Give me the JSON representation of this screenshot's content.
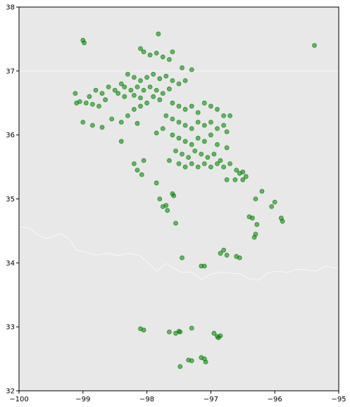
{
  "chart_data": {
    "type": "scatter",
    "title": "",
    "xlabel": "",
    "ylabel": "",
    "xlim": [
      -100,
      -95
    ],
    "ylim": [
      32,
      38
    ],
    "grid": false,
    "legend": "none",
    "x_ticks": [
      -100,
      -99,
      -98,
      -97,
      -96,
      -95
    ],
    "y_ticks": [
      32,
      33,
      34,
      35,
      36,
      37,
      38
    ],
    "x_tick_labels": [
      "−100",
      "−99",
      "−98",
      "−97",
      "−96",
      "−95"
    ],
    "y_tick_labels": [
      "32",
      "33",
      "34",
      "35",
      "36",
      "37",
      "38"
    ],
    "colors": {
      "points": "#008000",
      "plot_background": "#e8e8e8",
      "boundary_lines": "#ffffff",
      "axes": "#000000"
    },
    "background_lines": [
      {
        "label": "",
        "points": [
          [
            -100,
            36.998
          ],
          [
            -94.62,
            36.998
          ]
        ]
      },
      {
        "label": "",
        "points": [
          [
            -100,
            34.56
          ],
          [
            -99.85,
            34.55
          ],
          [
            -99.72,
            34.45
          ],
          [
            -99.58,
            34.38
          ],
          [
            -99.45,
            34.42
          ],
          [
            -99.35,
            34.46
          ],
          [
            -99.22,
            34.38
          ],
          [
            -99.1,
            34.2
          ],
          [
            -98.95,
            34.17
          ],
          [
            -98.8,
            34.12
          ],
          [
            -98.6,
            34.15
          ],
          [
            -98.45,
            34.11
          ],
          [
            -98.3,
            34.15
          ],
          [
            -98.12,
            34.12
          ],
          [
            -97.98,
            34.0
          ],
          [
            -97.85,
            33.87
          ],
          [
            -97.7,
            33.99
          ],
          [
            -97.55,
            33.9
          ],
          [
            -97.45,
            33.85
          ],
          [
            -97.3,
            33.86
          ],
          [
            -97.15,
            33.74
          ],
          [
            -97.0,
            33.82
          ],
          [
            -96.85,
            33.86
          ],
          [
            -96.7,
            33.84
          ],
          [
            -96.55,
            33.83
          ],
          [
            -96.4,
            33.75
          ],
          [
            -96.25,
            33.73
          ],
          [
            -96.1,
            33.85
          ],
          [
            -95.95,
            33.87
          ],
          [
            -95.8,
            33.85
          ],
          [
            -95.65,
            33.9
          ],
          [
            -95.5,
            33.89
          ],
          [
            -95.35,
            33.87
          ],
          [
            -95.2,
            33.95
          ],
          [
            -95.05,
            33.92
          ],
          [
            -95.0,
            33.9
          ]
        ]
      }
    ],
    "series": [
      {
        "color": "#008000",
        "points": [
          [
            -99.0,
            37.48
          ],
          [
            -98.98,
            37.44
          ],
          [
            -95.38,
            37.4
          ],
          [
            -97.82,
            37.58
          ],
          [
            -98.1,
            37.35
          ],
          [
            -98.05,
            37.3
          ],
          [
            -97.95,
            37.25
          ],
          [
            -97.85,
            37.28
          ],
          [
            -97.75,
            37.22
          ],
          [
            -97.65,
            37.18
          ],
          [
            -97.6,
            37.3
          ],
          [
            -97.45,
            37.05
          ],
          [
            -97.3,
            37.02
          ],
          [
            -98.3,
            36.95
          ],
          [
            -98.2,
            36.9
          ],
          [
            -98.1,
            36.85
          ],
          [
            -98.0,
            36.9
          ],
          [
            -97.9,
            36.95
          ],
          [
            -97.8,
            36.88
          ],
          [
            -97.7,
            36.92
          ],
          [
            -97.6,
            36.85
          ],
          [
            -97.5,
            36.8
          ],
          [
            -97.4,
            36.85
          ],
          [
            -98.4,
            36.8
          ],
          [
            -98.35,
            36.75
          ],
          [
            -98.25,
            36.7
          ],
          [
            -98.15,
            36.75
          ],
          [
            -98.05,
            36.7
          ],
          [
            -97.95,
            36.75
          ],
          [
            -97.85,
            36.7
          ],
          [
            -97.75,
            36.65
          ],
          [
            -97.65,
            36.72
          ],
          [
            -98.6,
            36.75
          ],
          [
            -98.5,
            36.7
          ],
          [
            -98.45,
            36.65
          ],
          [
            -98.35,
            36.6
          ],
          [
            -98.2,
            36.62
          ],
          [
            -98.1,
            36.58
          ],
          [
            -97.9,
            36.6
          ],
          [
            -97.8,
            36.55
          ],
          [
            -98.8,
            36.7
          ],
          [
            -98.7,
            36.65
          ],
          [
            -98.9,
            36.6
          ],
          [
            -98.65,
            36.55
          ],
          [
            -99.1,
            36.5
          ],
          [
            -99.05,
            36.52
          ],
          [
            -98.95,
            36.5
          ],
          [
            -98.85,
            36.48
          ],
          [
            -98.75,
            36.45
          ],
          [
            -99.12,
            36.65
          ],
          [
            -99.0,
            36.2
          ],
          [
            -98.85,
            36.15
          ],
          [
            -98.7,
            36.12
          ],
          [
            -98.55,
            36.25
          ],
          [
            -98.4,
            36.2
          ],
          [
            -98.3,
            36.3
          ],
          [
            -98.2,
            36.4
          ],
          [
            -98.1,
            36.45
          ],
          [
            -98.0,
            36.5
          ],
          [
            -98.15,
            36.18
          ],
          [
            -97.6,
            36.5
          ],
          [
            -97.5,
            36.45
          ],
          [
            -97.4,
            36.4
          ],
          [
            -97.3,
            36.45
          ],
          [
            -97.2,
            36.35
          ],
          [
            -97.1,
            36.5
          ],
          [
            -97.0,
            36.45
          ],
          [
            -96.9,
            36.4
          ],
          [
            -96.8,
            36.3
          ],
          [
            -97.7,
            36.3
          ],
          [
            -97.6,
            36.25
          ],
          [
            -97.5,
            36.2
          ],
          [
            -97.4,
            36.15
          ],
          [
            -97.3,
            36.1
          ],
          [
            -97.2,
            36.2
          ],
          [
            -97.1,
            36.15
          ],
          [
            -97.0,
            36.2
          ],
          [
            -96.9,
            36.1
          ],
          [
            -96.8,
            36.15
          ],
          [
            -96.7,
            36.3
          ],
          [
            -96.75,
            36.05
          ],
          [
            -97.75,
            36.1
          ],
          [
            -97.6,
            36.0
          ],
          [
            -97.5,
            35.95
          ],
          [
            -97.4,
            35.9
          ],
          [
            -97.3,
            35.85
          ],
          [
            -97.2,
            35.95
          ],
          [
            -97.1,
            35.9
          ],
          [
            -97.0,
            36.0
          ],
          [
            -96.9,
            35.85
          ],
          [
            -96.75,
            35.8
          ],
          [
            -97.85,
            36.03
          ],
          [
            -97.55,
            35.75
          ],
          [
            -97.45,
            35.7
          ],
          [
            -97.35,
            35.65
          ],
          [
            -97.25,
            35.75
          ],
          [
            -97.15,
            35.7
          ],
          [
            -97.05,
            35.65
          ],
          [
            -96.95,
            35.7
          ],
          [
            -96.85,
            35.6
          ],
          [
            -97.65,
            35.6
          ],
          [
            -97.5,
            35.55
          ],
          [
            -97.4,
            35.5
          ],
          [
            -97.3,
            35.55
          ],
          [
            -97.2,
            35.5
          ],
          [
            -97.1,
            35.55
          ],
          [
            -97.0,
            35.5
          ],
          [
            -96.9,
            35.55
          ],
          [
            -96.8,
            35.5
          ],
          [
            -96.7,
            35.55
          ],
          [
            -96.6,
            35.45
          ],
          [
            -96.55,
            35.4
          ],
          [
            -96.5,
            35.42
          ],
          [
            -96.45,
            35.35
          ],
          [
            -96.62,
            35.3
          ],
          [
            -96.75,
            35.3
          ],
          [
            -98.4,
            35.9
          ],
          [
            -98.2,
            35.55
          ],
          [
            -98.15,
            35.45
          ],
          [
            -98.08,
            35.38
          ],
          [
            -98.05,
            35.6
          ],
          [
            -97.85,
            35.25
          ],
          [
            -97.6,
            35.08
          ],
          [
            -97.58,
            35.05
          ],
          [
            -97.8,
            35.0
          ],
          [
            -97.75,
            34.88
          ],
          [
            -97.7,
            34.9
          ],
          [
            -97.68,
            34.82
          ],
          [
            -97.55,
            34.62
          ],
          [
            -96.5,
            35.3
          ],
          [
            -96.2,
            35.12
          ],
          [
            -96.3,
            35.0
          ],
          [
            -96.0,
            34.95
          ],
          [
            -96.05,
            34.88
          ],
          [
            -96.4,
            34.72
          ],
          [
            -96.35,
            34.7
          ],
          [
            -96.28,
            34.6
          ],
          [
            -96.3,
            34.45
          ],
          [
            -96.32,
            34.4
          ],
          [
            -95.9,
            34.7
          ],
          [
            -95.88,
            34.65
          ],
          [
            -97.45,
            34.08
          ],
          [
            -97.15,
            33.95
          ],
          [
            -97.1,
            33.95
          ],
          [
            -96.85,
            34.15
          ],
          [
            -96.8,
            34.2
          ],
          [
            -96.75,
            34.12
          ],
          [
            -96.6,
            34.1
          ],
          [
            -96.55,
            34.08
          ],
          [
            -98.1,
            32.97
          ],
          [
            -98.05,
            32.95
          ],
          [
            -97.3,
            32.98
          ],
          [
            -97.65,
            32.92
          ],
          [
            -97.55,
            32.9
          ],
          [
            -97.5,
            32.93
          ],
          [
            -97.48,
            32.92
          ],
          [
            -96.95,
            32.9
          ],
          [
            -96.9,
            32.85
          ],
          [
            -96.88,
            32.83
          ],
          [
            -96.85,
            32.86
          ],
          [
            -97.35,
            32.48
          ],
          [
            -97.3,
            32.47
          ],
          [
            -97.15,
            32.52
          ],
          [
            -97.1,
            32.5
          ],
          [
            -97.08,
            32.45
          ],
          [
            -97.48,
            32.38
          ]
        ]
      }
    ]
  }
}
